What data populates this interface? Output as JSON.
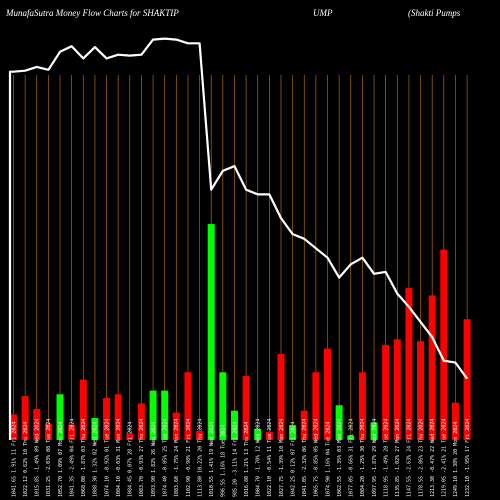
{
  "chart_data": {
    "type": "bar",
    "title_parts": [
      "MunafaSutra  Money Flow  Charts for SHAKTIP",
      "UMP",
      "(Shakti   Pumps"
    ],
    "colors": {
      "background": "#000000",
      "gridline": "#b06a10",
      "up": "#00ff00",
      "down": "#ff0000",
      "price_line": "#ffffff"
    },
    "grid": true,
    "categories": [
      "1041.65 1.91% 11 Fri 2024",
      "1022.12 0.62% 10 Thu 2024",
      "1015.85 -1.49% 09 Wed 2024",
      "1031.25 -2.03% 08 Tue 2024",
      "1052.70 1.09% 07 Mon 2024",
      "1041.35 -2.49% 04 Fri 2024",
      "1068.00 -1.87% 03 Thu 2024",
      "1088.30 1.32% 02 Wed 2024",
      "1074.10 -0.92% 01 Tue 2024",
      "1084.10 -0.03% 31 Mon 2024",
      "1084.45 0.07% 28 Fri 2024",
      "1083.70 -0.93% 27 Thu 2024",
      "1093.90 1.82% 26 Wed 2024",
      "1074.40 -0.85% 25 Tue 2024",
      "1083.60 -1.75% 24 Mon 2024",
      "1102.90 -0.98% 21 Fri 2024",
      "1113.80 10.22% 20 Thu 2024",
      "1010.55 1.41% 19 Wed 2024",
      "996.55 1.16% 18 Tue 2024",
      "985.20 -3.11% 14 Fri 2024",
      "1016.80 1.21% 13 Thu 2024",
      "1004.70 -1.70% 12 Wed 2024",
      "1022.10 -0.54% 11 Tue 2024",
      "1027.75 -1.39% 10 Mon 2024",
      "1042.25 0.12% 07 Fri 2024",
      "1041.05 -2.32% 06 Thu 2024",
      "1065.75 -0.85% 05 Wed 2024",
      "1074.90 1.16% 04 Tue 2024",
      "1062.55 -1.35% 03 Mon 2024",
      "1077.05 -0.66% 31 Fri 2024",
      "1084.20 -1.25% 30 Thu 2024",
      "1097.95 -1.87% 29 Wed 2024",
      "1118.95 -1.49% 28 Tue 2024",
      "1135.85 -1.02% 27 Mon 2024",
      "1147.55 -2.63% 24 Fri 2024",
      "1178.55 -2.86% 23 Thu 2024",
      "1213.30 -0.47% 22 Wed 2024",
      "1219.05 -2.41% 21 Tue 2024",
      "1249.10 1.38% 20 Mon 2024",
      "1232.10 -1.95% 17 Fri 2024"
    ],
    "bars": [
      {
        "value": 7,
        "dir": "down"
      },
      {
        "value": 12,
        "dir": "down"
      },
      {
        "value": 8.5,
        "dir": "down"
      },
      {
        "value": 4.5,
        "dir": "down"
      },
      {
        "value": 12.5,
        "dir": "up"
      },
      {
        "value": 4.2,
        "dir": "down"
      },
      {
        "value": 16.5,
        "dir": "down"
      },
      {
        "value": 6,
        "dir": "up"
      },
      {
        "value": 11.5,
        "dir": "down"
      },
      {
        "value": 12.5,
        "dir": "down"
      },
      {
        "value": 1.8,
        "dir": "down"
      },
      {
        "value": 10,
        "dir": "down"
      },
      {
        "value": 13.5,
        "dir": "up"
      },
      {
        "value": 13.5,
        "dir": "up"
      },
      {
        "value": 7.5,
        "dir": "down"
      },
      {
        "value": 18.5,
        "dir": "down"
      },
      {
        "value": 2.5,
        "dir": "down"
      },
      {
        "value": 59,
        "dir": "up"
      },
      {
        "value": 18.5,
        "dir": "up"
      },
      {
        "value": 8,
        "dir": "up"
      },
      {
        "value": 17.5,
        "dir": "down"
      },
      {
        "value": 3,
        "dir": "up"
      },
      {
        "value": 2.2,
        "dir": "down"
      },
      {
        "value": 23.5,
        "dir": "down"
      },
      {
        "value": 4,
        "dir": "up"
      },
      {
        "value": 8,
        "dir": "down"
      },
      {
        "value": 18.5,
        "dir": "down"
      },
      {
        "value": 25,
        "dir": "down"
      },
      {
        "value": 9.5,
        "dir": "up"
      },
      {
        "value": 1.2,
        "dir": "up"
      },
      {
        "value": 18.5,
        "dir": "down"
      },
      {
        "value": 4.8,
        "dir": "up"
      },
      {
        "value": 26,
        "dir": "down"
      },
      {
        "value": 27.5,
        "dir": "down"
      },
      {
        "value": 41.5,
        "dir": "down"
      },
      {
        "value": 27,
        "dir": "down"
      },
      {
        "value": 39.5,
        "dir": "down"
      },
      {
        "value": 52,
        "dir": "down"
      },
      {
        "value": 10.2,
        "dir": "down"
      },
      {
        "value": 33,
        "dir": "down"
      }
    ],
    "bar_ylim": [
      0,
      100
    ],
    "price": [
      1470,
      1471,
      1475,
      1472,
      1491,
      1497,
      1484,
      1496,
      1484,
      1488,
      1487,
      1488,
      1504,
      1505,
      1504,
      1500,
      1500,
      1345,
      1365,
      1370,
      1345,
      1340,
      1340,
      1315,
      1298,
      1293,
      1283,
      1273,
      1252,
      1266,
      1273,
      1256,
      1258,
      1235,
      1221,
      1205,
      1189,
      1164,
      1162,
      1145
    ],
    "price_ylim": [
      1080,
      1530
    ]
  }
}
